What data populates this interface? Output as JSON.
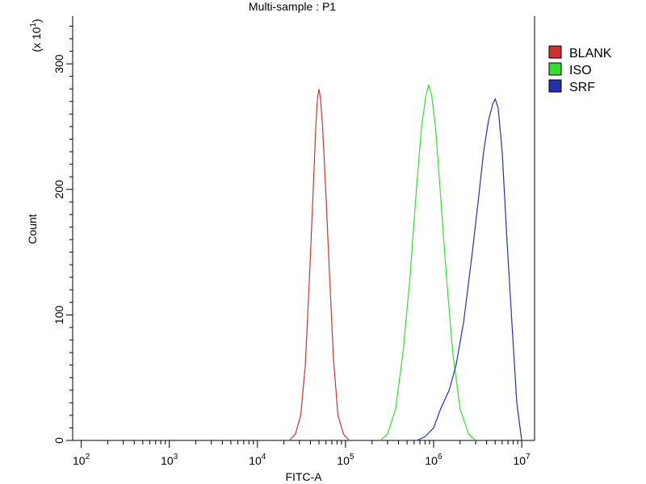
{
  "chart_data": {
    "type": "line",
    "title": "Multi-sample : P1",
    "xlabel": "FITC-A",
    "ylabel": "Count",
    "y_multiplier_label": "(x 10",
    "y_multiplier_exp": "1",
    "x_scale": "log",
    "xlim": [
      80,
      14000000
    ],
    "ylim": [
      0,
      338
    ],
    "x_ticks": [
      {
        "value": 100,
        "base": "10",
        "exp": "2"
      },
      {
        "value": 1000,
        "base": "10",
        "exp": "3"
      },
      {
        "value": 10000,
        "base": "10",
        "exp": "4"
      },
      {
        "value": 100000,
        "base": "10",
        "exp": "5"
      },
      {
        "value": 1000000,
        "base": "10",
        "exp": "6"
      },
      {
        "value": 10000000,
        "base": "10",
        "exp": "7"
      }
    ],
    "y_ticks": [
      0,
      100,
      200,
      300
    ],
    "legend_position": "right",
    "grid": false,
    "series": [
      {
        "name": "BLANK",
        "color": "#cc3333",
        "x": [
          23000,
          27000,
          31000,
          35000,
          39000,
          43000,
          46000,
          48000,
          50000,
          52000,
          55000,
          60000,
          66000,
          73000,
          82000,
          95000,
          110000
        ],
        "y": [
          0,
          5,
          20,
          60,
          130,
          200,
          250,
          272,
          280,
          272,
          250,
          195,
          130,
          65,
          20,
          5,
          0
        ]
      },
      {
        "name": "ISO",
        "color": "#33dd33",
        "x": [
          250000,
          300000,
          370000,
          450000,
          540000,
          630000,
          730000,
          820000,
          880000,
          950000,
          1050000,
          1200000,
          1400000,
          1650000,
          2000000,
          2500000,
          3000000
        ],
        "y": [
          0,
          5,
          25,
          70,
          130,
          195,
          250,
          275,
          283,
          275,
          250,
          195,
          130,
          70,
          25,
          5,
          0
        ]
      },
      {
        "name": "SRF",
        "color": "#2233aa",
        "x": [
          650000,
          800000,
          1000000,
          1200000,
          1500000,
          1800000,
          2200000,
          2700000,
          3200000,
          3700000,
          4200000,
          4700000,
          5000000,
          5400000,
          6000000,
          6800000,
          7800000,
          8800000,
          10000000
        ],
        "y": [
          0,
          3,
          10,
          25,
          40,
          60,
          95,
          145,
          190,
          230,
          255,
          268,
          272,
          265,
          230,
          160,
          90,
          30,
          0
        ]
      }
    ]
  }
}
